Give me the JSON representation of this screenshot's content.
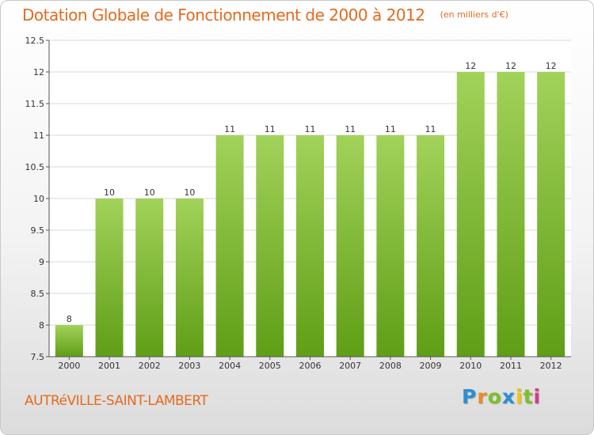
{
  "title": "Dotation Globale de Fonctionnement de 2000 à 2012",
  "subtitle": "(en milliers d'€)",
  "commune": "AUTRéVILLE-SAINT-LAMBERT",
  "logo": {
    "letters": [
      "P",
      "r",
      "o",
      "x",
      "i",
      "t",
      "i"
    ],
    "colors": [
      "#2a8fd4",
      "#f08a1e",
      "#7fbf2a",
      "#2a8fd4",
      "#f5c400",
      "#7fbf2a",
      "#d63a8a"
    ]
  },
  "colors": {
    "bar_light": "#a2d25a",
    "bar_dark": "#5f9e16",
    "title": "#e46a1f",
    "grid": "#d8d8d8"
  },
  "chart_data": {
    "type": "bar",
    "categories": [
      "2000",
      "2001",
      "2002",
      "2003",
      "2004",
      "2005",
      "2006",
      "2007",
      "2008",
      "2009",
      "2010",
      "2011",
      "2012"
    ],
    "values": [
      8,
      10,
      10,
      10,
      11,
      11,
      11,
      11,
      11,
      11,
      12,
      12,
      12
    ],
    "labels": [
      "8",
      "10",
      "10",
      "10",
      "11",
      "11",
      "11",
      "11",
      "11",
      "11",
      "12",
      "12",
      "12"
    ],
    "ylim": [
      7.5,
      12.5
    ],
    "yticks": [
      7.5,
      8,
      8.5,
      9,
      9.5,
      10,
      10.5,
      11,
      11.5,
      12,
      12.5
    ],
    "grid": true
  }
}
